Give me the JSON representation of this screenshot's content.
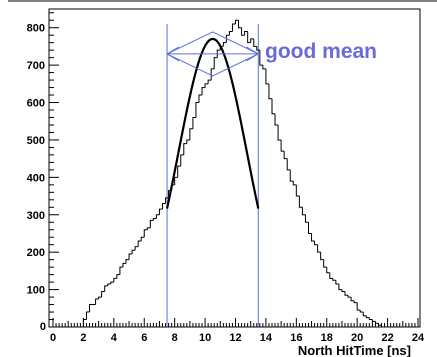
{
  "chart_data": {
    "type": "histogram",
    "title": "",
    "xlabel": "North HitTime [ns]",
    "ylabel": "",
    "xlim": [
      0,
      24
    ],
    "ylim": [
      0,
      850
    ],
    "x_ticks": [
      0,
      2,
      4,
      6,
      8,
      10,
      12,
      14,
      16,
      18,
      20,
      22,
      24
    ],
    "y_ticks": [
      100,
      200,
      300,
      400,
      500,
      600,
      700,
      800
    ],
    "y_zero_label": "0",
    "grid": false,
    "legend": "none",
    "histogram": {
      "bin_width": 0.2,
      "bin_start": 0,
      "values": [
        0,
        0,
        0,
        0,
        0,
        0,
        0,
        0,
        0,
        0,
        20,
        40,
        60,
        60,
        75,
        80,
        95,
        110,
        115,
        120,
        130,
        140,
        160,
        170,
        180,
        195,
        205,
        215,
        230,
        240,
        260,
        265,
        285,
        290,
        300,
        315,
        330,
        345,
        365,
        380,
        400,
        430,
        460,
        490,
        500,
        530,
        560,
        600,
        620,
        640,
        650,
        660,
        690,
        720,
        740,
        750,
        760,
        780,
        790,
        810,
        820,
        800,
        780,
        790,
        760,
        770,
        750,
        740,
        700,
        690,
        650,
        610,
        570,
        540,
        500,
        470,
        450,
        420,
        390,
        380,
        350,
        320,
        300,
        280,
        250,
        230,
        220,
        200,
        180,
        160,
        145,
        130,
        125,
        115,
        100,
        95,
        85,
        80,
        70,
        65,
        45,
        40,
        30,
        25,
        20,
        15,
        10,
        5,
        0,
        0,
        0,
        0,
        0,
        0,
        0,
        0,
        0,
        0,
        0,
        0
      ],
      "color": "#000000"
    },
    "fit": {
      "function": "gaussian",
      "mean": 10.5,
      "sigma": 3.6,
      "amplitude": 770,
      "x_range": [
        7.5,
        13.5
      ],
      "color": "#000000"
    },
    "annotations": {
      "text": "good mean",
      "text_color": "#6a6ad9",
      "line_color": "#5b6fd8",
      "vertical_lines_x": [
        7.5,
        13.5
      ],
      "arrow_y": 730,
      "arrow_tips_x": [
        7.5,
        13.5
      ],
      "arrow_center_x": 10.5
    }
  }
}
